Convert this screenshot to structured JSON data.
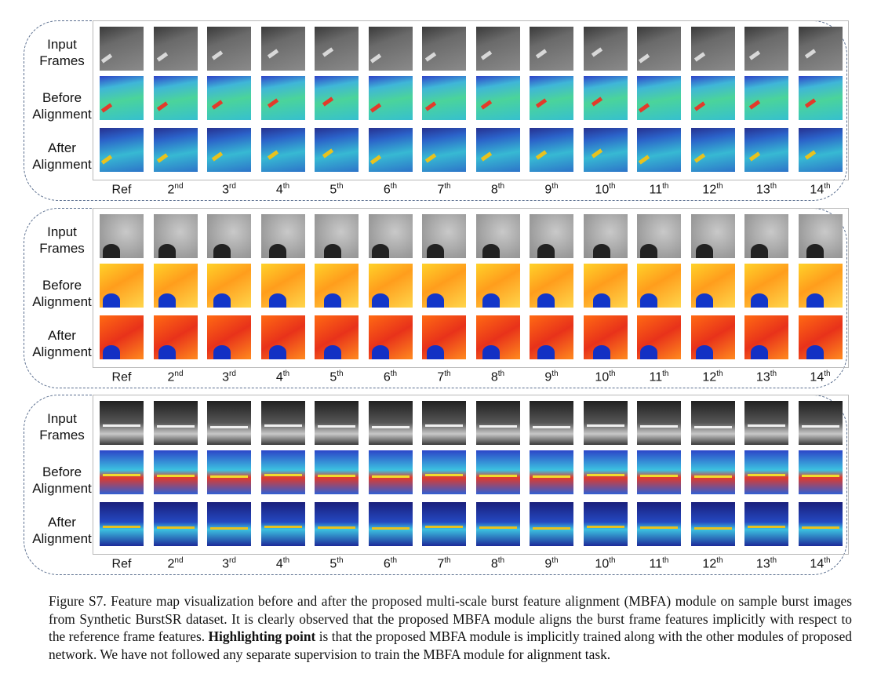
{
  "row_labels": {
    "input": [
      "Input",
      "Frames"
    ],
    "before": [
      "Before",
      "Alignment"
    ],
    "after": [
      "After",
      "Alignment"
    ]
  },
  "frame_labels": [
    {
      "base": "Ref",
      "sup": ""
    },
    {
      "base": "2",
      "sup": "nd"
    },
    {
      "base": "3",
      "sup": "rd"
    },
    {
      "base": "4",
      "sup": "th"
    },
    {
      "base": "5",
      "sup": "th"
    },
    {
      "base": "6",
      "sup": "th"
    },
    {
      "base": "7",
      "sup": "th"
    },
    {
      "base": "8",
      "sup": "th"
    },
    {
      "base": "9",
      "sup": "th"
    },
    {
      "base": "10",
      "sup": "th"
    },
    {
      "base": "11",
      "sup": "th"
    },
    {
      "base": "12",
      "sup": "th"
    },
    {
      "base": "13",
      "sup": "th"
    },
    {
      "base": "14",
      "sup": "th"
    }
  ],
  "panels": [
    {
      "scene": "street-pavement-with-camera",
      "styles": {
        "input": {
          "bg": "linear-gradient(160deg,#3a3a3a 0%,#6a6a6a 35%,#8a8a8a 100%)",
          "mark": "#d8d8d8"
        },
        "before": {
          "bg": "linear-gradient(170deg,#2f43c8 0%,#3fb6d8 25%,#4bd49a 55%,#36c0cf 100%)",
          "mark": "#e33a2a"
        },
        "after": {
          "bg": "linear-gradient(170deg,#27318f 0%,#2b62c9 25%,#37b9d3 60%,#2d74c9 100%)",
          "mark": "#e8c21e"
        }
      }
    },
    {
      "scene": "noisy-texture-with-plant",
      "styles": {
        "input": {
          "bg": "radial-gradient(circle at 60% 40%,#c9c9c9 0%,#9c9c9c 70%,#8f8f8f 100%)",
          "mark": "#222222"
        },
        "before": {
          "bg": "linear-gradient(150deg,#ffd22a 0%,#ff9d1c 45%,#ffd64b 100%)",
          "mark": "#1236c9"
        },
        "after": {
          "bg": "linear-gradient(150deg,#ff6a13 0%,#e8321a 50%,#ff8a1e 100%)",
          "mark": "#1330c4"
        }
      }
    },
    {
      "scene": "street-with-car-and-bicycle",
      "styles": {
        "input": {
          "bg": "linear-gradient(180deg,#202020 0%,#575757 50%,#c8c8c8 75%,#3a3a3a 100%)",
          "mark": "#f0f0f0"
        },
        "before": {
          "bg": "linear-gradient(180deg,#2c45c8 0%,#3cc2e0 45%,#e23a2a 62%,#2f5fd4 100%)",
          "mark": "#f2dc2c"
        },
        "after": {
          "bg": "linear-gradient(180deg,#1a1f7c 0%,#2448c0 45%,#3cc2e0 62%,#1d2a9a 100%)",
          "mark": "#e8c21e"
        }
      }
    }
  ],
  "caption": {
    "part1": "Figure S7. Feature map visualization before and after the proposed multi-scale burst feature alignment (MBFA) module on sample burst images from Synthetic BurstSR dataset. It is clearly observed that the proposed MBFA module aligns the burst frame features implicitly with respect to the reference frame features. ",
    "bold": "Highlighting point",
    "part2": " is that the proposed MBFA module is implicitly trained along with the other modules of proposed network. We have not followed any separate supervision to train the MBFA module for alignment task."
  }
}
